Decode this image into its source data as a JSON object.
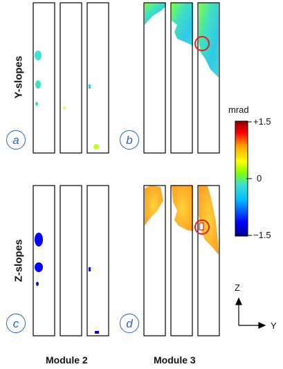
{
  "rows": [
    {
      "label": "Y-slopes"
    },
    {
      "label": "Z-slopes"
    }
  ],
  "panels": [
    "a",
    "b",
    "c",
    "d"
  ],
  "columns": [
    {
      "label": "Module 2"
    },
    {
      "label": "Module 3"
    }
  ],
  "colorbar": {
    "unit": "mrad",
    "max_label": "+1.5",
    "mid_label": "0",
    "min_label": "−1.5",
    "colors": [
      "#00008b",
      "#0000ff",
      "#00bfff",
      "#40e0d0",
      "#7fff00",
      "#ffff00",
      "#ffa500",
      "#ff0000",
      "#8b0000"
    ]
  },
  "axes": {
    "vertical": "Z",
    "horizontal": "Y"
  }
}
